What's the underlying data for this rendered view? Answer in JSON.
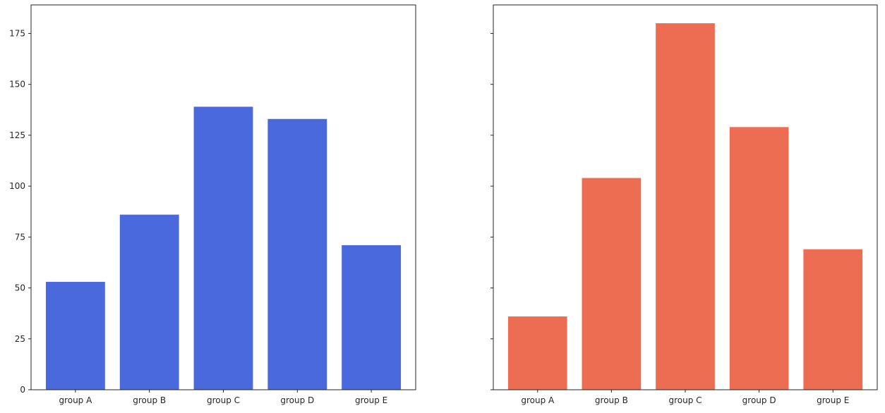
{
  "chart_data": [
    {
      "type": "bar",
      "categories": [
        "group A",
        "group B",
        "group C",
        "group D",
        "group E"
      ],
      "values": [
        53,
        86,
        139,
        133,
        71
      ],
      "color": "#4a69dc",
      "title": "",
      "xlabel": "",
      "ylabel": "",
      "ylim": [
        0,
        189
      ],
      "yticks": [
        0,
        25,
        50,
        75,
        100,
        125,
        150,
        175
      ],
      "ytick_labels_shown": true,
      "grid": false,
      "legend": "none"
    },
    {
      "type": "bar",
      "categories": [
        "group A",
        "group B",
        "group C",
        "group D",
        "group E"
      ],
      "values": [
        36,
        104,
        180,
        129,
        69
      ],
      "color": "#ec6d52",
      "title": "",
      "xlabel": "",
      "ylabel": "",
      "ylim": [
        0,
        189
      ],
      "yticks": [
        0,
        25,
        50,
        75,
        100,
        125,
        150,
        175
      ],
      "ytick_labels_shown": false,
      "grid": false,
      "legend": "none"
    }
  ]
}
